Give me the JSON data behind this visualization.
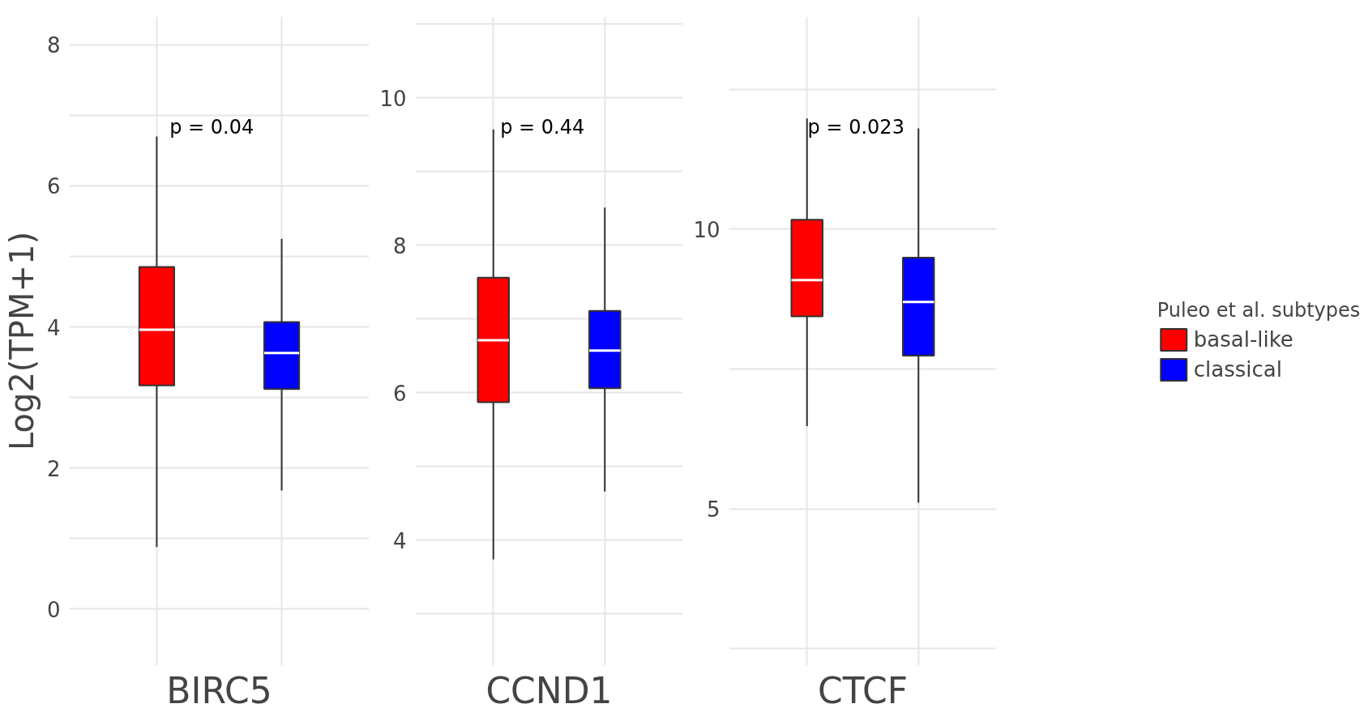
{
  "chart_data": [
    {
      "type": "box",
      "categories": [
        null
      ],
      "xlabel": "BIRC5",
      "ylabel": "Log2(TPM+1)",
      "ylim": [
        -0.8,
        8.4
      ],
      "yticks": [
        0,
        {
          "value": 1,
          "label": null
        },
        2,
        {
          "value": 3,
          "label": null
        },
        4,
        {
          "value": 5,
          "label": null
        },
        6,
        {
          "value": 7,
          "label": null
        },
        8
      ],
      "grid": true,
      "legend": false,
      "tick_labels": "y",
      "annotations": [
        "p = 0.04"
      ],
      "series": [
        {
          "color": "#ff0000",
          "boxes": [
            {
              "low": 0.88,
              "q1": 3.17,
              "median": 3.96,
              "q3": 4.85,
              "high": 6.7
            }
          ]
        },
        {
          "color": "#0000ff",
          "boxes": [
            {
              "low": 1.68,
              "q1": 3.12,
              "median": 3.63,
              "q3": 4.07,
              "high": 5.25
            }
          ]
        }
      ]
    },
    {
      "type": "box",
      "categories": [
        null
      ],
      "xlabel": "CCND1",
      "ylim": [
        2.3,
        11.1
      ],
      "yticks": [
        {
          "value": 3,
          "label": null
        },
        4,
        {
          "value": 5,
          "label": null
        },
        6,
        {
          "value": 7,
          "label": null
        },
        8,
        {
          "value": 9,
          "label": null
        },
        10,
        {
          "value": 11,
          "label": null
        }
      ],
      "grid": true,
      "legend": false,
      "tick_labels": "y",
      "annotations": [
        "p = 0.44"
      ],
      "series": [
        {
          "color": "#ff0000",
          "boxes": [
            {
              "low": 3.74,
              "q1": 5.87,
              "median": 6.71,
              "q3": 7.56,
              "high": 9.57
            }
          ]
        },
        {
          "color": "#0000ff",
          "boxes": [
            {
              "low": 4.66,
              "q1": 6.06,
              "median": 6.57,
              "q3": 7.11,
              "high": 8.51
            }
          ]
        }
      ]
    },
    {
      "type": "box",
      "categories": [
        null
      ],
      "xlabel": "CTCF",
      "ylim": [
        2.2,
        13.8
      ],
      "yticks": [
        {
          "value": 2.5,
          "label": null
        },
        5,
        {
          "value": 7.5,
          "label": null
        },
        10,
        {
          "value": 12.5,
          "label": null
        }
      ],
      "grid": true,
      "legend": "right",
      "legend_title": "Puleo et al. subtypes",
      "tick_labels": "y",
      "annotations": [
        "p = 0.023"
      ],
      "series": [
        {
          "name": "basal-like",
          "color": "#ff0000",
          "boxes": [
            {
              "low": 6.48,
              "q1": 8.44,
              "median": 9.09,
              "q3": 10.17,
              "high": 11.98
            }
          ]
        },
        {
          "name": "classical",
          "color": "#0000ff",
          "boxes": [
            {
              "low": 5.11,
              "q1": 7.74,
              "median": 8.7,
              "q3": 9.49,
              "high": 11.8
            }
          ]
        }
      ]
    }
  ]
}
